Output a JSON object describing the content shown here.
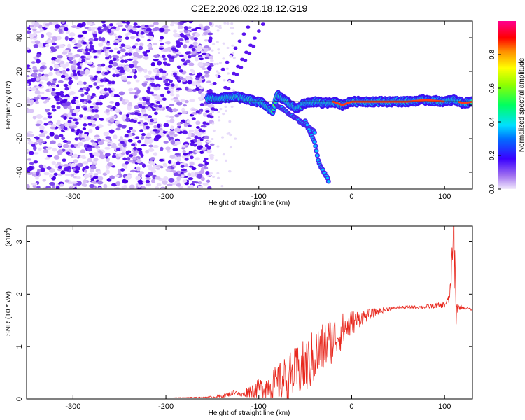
{
  "title": "C2E2.2026.022.18.12.G19",
  "chart_data": [
    {
      "type": "heatmap",
      "xlabel": "Height of straight line (km)",
      "ylabel": "Frequency (Hz)",
      "xlim": [
        -350,
        130
      ],
      "ylim": [
        -50,
        50
      ],
      "xticks": [
        -300,
        -200,
        -100,
        0,
        100
      ],
      "yticks": [
        -40,
        -20,
        0,
        20,
        40
      ],
      "colorbar": {
        "label": "Normalized spectral amplitude",
        "range": [
          0.0,
          1.0
        ],
        "ticks": [
          "0.0",
          "0.2",
          "0.4",
          "0.6",
          "0.8"
        ]
      },
      "ridge": {
        "x": [
          -155,
          -140,
          -125,
          -110,
          -95,
          -85,
          -80,
          -70,
          -60,
          -50,
          -40,
          -30,
          -20,
          -10,
          0,
          20,
          40,
          60,
          80,
          100,
          110,
          120,
          130
        ],
        "y": [
          4,
          4,
          5,
          3,
          1,
          -4,
          6,
          2,
          -2,
          1,
          2,
          1,
          2,
          0,
          2,
          2,
          2,
          2,
          3,
          2,
          3,
          1,
          2
        ]
      },
      "branches": [
        {
          "x": [
            -80,
            -70,
            -60,
            -50,
            -40
          ],
          "y": [
            0,
            -4,
            -8,
            -12,
            -16
          ]
        },
        {
          "x": [
            -50,
            -40,
            -35,
            -25
          ],
          "y": [
            -10,
            -22,
            -35,
            -45
          ]
        }
      ]
    },
    {
      "type": "line",
      "xlabel": "Height of straight line (km)",
      "ylabel": "SNR (10 * v/v)",
      "yscale_label": "(x10",
      "yscale_exp": "4",
      "xlim": [
        -350,
        130
      ],
      "ylim": [
        0,
        3.3
      ],
      "xticks": [
        -300,
        -200,
        -100,
        0,
        100
      ],
      "yticks": [
        0,
        1,
        2,
        3
      ],
      "series_color": "#e8281e",
      "series": [
        {
          "x": [
            -350,
            -300,
            -250,
            -200,
            -160,
            -140,
            -130,
            -125,
            -120,
            -110,
            -100,
            -90,
            -80,
            -70,
            -60,
            -50,
            -40,
            -30,
            -20,
            -10,
            0,
            10,
            20,
            30,
            40,
            50,
            60,
            70,
            80,
            90,
            100,
            105,
            108,
            110,
            112,
            115,
            120,
            125,
            130
          ],
          "y": [
            0.02,
            0.02,
            0.02,
            0.02,
            0.03,
            0.05,
            0.1,
            0.15,
            0.06,
            0.15,
            0.2,
            0.25,
            0.3,
            0.4,
            0.5,
            0.6,
            0.8,
            1.0,
            1.15,
            1.3,
            1.45,
            1.55,
            1.62,
            1.68,
            1.72,
            1.74,
            1.75,
            1.75,
            1.76,
            1.78,
            1.8,
            1.9,
            2.5,
            3.2,
            1.8,
            1.75,
            1.74,
            1.73,
            1.7
          ],
          "noise": [
            0,
            0,
            0,
            0,
            0.01,
            0.03,
            0.05,
            0.05,
            0.05,
            0.12,
            0.18,
            0.25,
            0.35,
            0.45,
            0.5,
            0.55,
            0.55,
            0.5,
            0.45,
            0.35,
            0.25,
            0.15,
            0.1,
            0.06,
            0.04,
            0.03,
            0.03,
            0.03,
            0.04,
            0.05,
            0.06,
            0.1,
            0.4,
            1.0,
            0.5,
            0.05,
            0.03,
            0.02,
            0.02
          ]
        }
      ]
    }
  ]
}
